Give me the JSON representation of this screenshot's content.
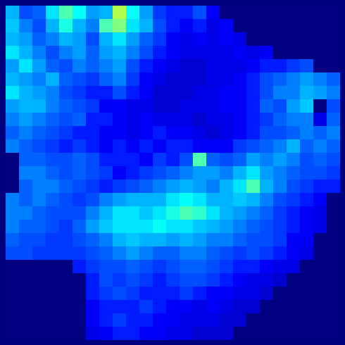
{
  "chart_data": {
    "type": "heatmap",
    "tick_labels": false,
    "zlim": [
      0,
      1
    ],
    "cells": [
      [
        0.3,
        0.2,
        0.22,
        0.35,
        0.45,
        0.38,
        0.28,
        0.3,
        0.55,
        0.38,
        0.28,
        0.18,
        0.15,
        0.15,
        0.2,
        0.12,
        0,
        0,
        0,
        0,
        0,
        0,
        0,
        0,
        0
      ],
      [
        0.32,
        0.25,
        0.2,
        0.3,
        0.4,
        0.3,
        0.25,
        0.45,
        0.5,
        0.35,
        0.3,
        0.2,
        0.15,
        0.12,
        0.15,
        0.1,
        0.12,
        0,
        0,
        0,
        0,
        0,
        0,
        0,
        0
      ],
      [
        0.3,
        0.28,
        0.22,
        0.25,
        0.3,
        0.28,
        0.2,
        0.3,
        0.35,
        0.28,
        0.22,
        0.18,
        0.12,
        0.1,
        0.12,
        0.1,
        0.12,
        0.1,
        0,
        0,
        0,
        0,
        0,
        0,
        0
      ],
      [
        0.35,
        0.3,
        0.25,
        0.2,
        0.25,
        0.28,
        0.22,
        0.28,
        0.3,
        0.25,
        0.2,
        0.15,
        0.12,
        0.1,
        0.1,
        0.1,
        0.1,
        0.12,
        0.1,
        0.12,
        0,
        0,
        0,
        0,
        0
      ],
      [
        0.28,
        0.35,
        0.28,
        0.22,
        0.2,
        0.25,
        0.22,
        0.25,
        0.28,
        0.2,
        0.15,
        0.12,
        0.1,
        0.08,
        0.08,
        0.1,
        0.1,
        0.1,
        0.12,
        0.15,
        0.15,
        0.18,
        0.2,
        0,
        0
      ],
      [
        0.3,
        0.28,
        0.25,
        0.3,
        0.22,
        0.2,
        0.18,
        0.22,
        0.25,
        0.18,
        0.12,
        0.1,
        0.08,
        0.08,
        0.08,
        0.1,
        0.1,
        0.12,
        0.15,
        0.2,
        0.22,
        0.25,
        0.28,
        0.25,
        0.22
      ],
      [
        0.35,
        0.3,
        0.28,
        0.25,
        0.2,
        0.18,
        0.15,
        0.15,
        0.2,
        0.15,
        0.12,
        0.08,
        0.08,
        0.08,
        0.1,
        0.1,
        0.12,
        0.12,
        0.15,
        0.2,
        0.25,
        0.25,
        0.3,
        0.28,
        0.25
      ],
      [
        0.28,
        0.3,
        0.3,
        0.25,
        0.22,
        0.2,
        0.18,
        0.12,
        0.12,
        0.1,
        0.1,
        0.08,
        0.08,
        0.1,
        0.1,
        0.1,
        0.12,
        0.12,
        0.15,
        0.22,
        0.2,
        0.28,
        0.32,
        0,
        0.2
      ],
      [
        0.25,
        0.28,
        0.25,
        0.22,
        0.2,
        0.22,
        0.15,
        0.15,
        0.12,
        0.1,
        0.12,
        0.1,
        0.1,
        0.1,
        0.08,
        0.1,
        0.1,
        0.12,
        0.15,
        0.18,
        0.22,
        0.25,
        0.25,
        0.1,
        0.22
      ],
      [
        0.22,
        0.25,
        0.22,
        0.2,
        0.18,
        0.15,
        0.15,
        0.12,
        0.12,
        0.1,
        0.12,
        0.15,
        0.12,
        0.12,
        0.1,
        0.08,
        0.1,
        0.12,
        0.15,
        0.2,
        0.2,
        0.22,
        0.25,
        0.22,
        0.25
      ],
      [
        0.25,
        0.22,
        0.2,
        0.18,
        0.15,
        0.18,
        0.15,
        0.12,
        0.15,
        0.12,
        0.15,
        0.12,
        0.15,
        0.15,
        0.12,
        0.12,
        0.12,
        0.18,
        0.2,
        0.22,
        0.25,
        0.3,
        0.22,
        0.25,
        0.22
      ],
      [
        0,
        0.22,
        0.22,
        0.2,
        0.2,
        0.22,
        0.2,
        0.15,
        0.15,
        0.15,
        0.12,
        0.18,
        0.15,
        0.2,
        0.45,
        0.22,
        0.2,
        0.22,
        0.28,
        0.25,
        0.28,
        0.25,
        0.2,
        0.22,
        0.2
      ],
      [
        0,
        0.25,
        0.25,
        0.22,
        0.2,
        0.22,
        0.2,
        0.18,
        0.12,
        0.15,
        0.18,
        0.2,
        0.22,
        0.25,
        0.28,
        0.28,
        0.25,
        0.3,
        0.35,
        0.28,
        0.25,
        0.22,
        0.2,
        0.2,
        0.18
      ],
      [
        0,
        0.22,
        0.25,
        0.25,
        0.22,
        0.2,
        0.18,
        0.15,
        0.18,
        0.2,
        0.22,
        0.25,
        0.28,
        0.3,
        0.28,
        0.25,
        0.3,
        0.35,
        0.45,
        0.3,
        0.25,
        0.2,
        0.18,
        0.15,
        0.15
      ],
      [
        0.25,
        0.22,
        0.25,
        0.22,
        0.2,
        0.18,
        0.2,
        0.25,
        0.28,
        0.3,
        0.3,
        0.3,
        0.35,
        0.38,
        0.35,
        0.3,
        0.3,
        0.32,
        0.3,
        0.25,
        0.2,
        0.18,
        0.15,
        0.12,
        0
      ],
      [
        0.25,
        0.25,
        0.22,
        0.2,
        0.2,
        0.2,
        0.25,
        0.3,
        0.35,
        0.35,
        0.32,
        0.35,
        0.4,
        0.45,
        0.42,
        0.35,
        0.3,
        0.28,
        0.25,
        0.22,
        0.18,
        0.15,
        0.12,
        0.1,
        0
      ],
      [
        0.25,
        0.22,
        0.22,
        0.2,
        0.18,
        0.22,
        0.28,
        0.32,
        0.35,
        0.35,
        0.35,
        0.38,
        0.35,
        0.35,
        0.32,
        0.3,
        0.28,
        0.25,
        0.22,
        0.2,
        0.18,
        0.15,
        0.12,
        0.1,
        0
      ],
      [
        0.22,
        0.2,
        0.2,
        0.18,
        0.18,
        0.2,
        0.22,
        0.25,
        0.3,
        0.32,
        0.3,
        0.3,
        0.28,
        0.3,
        0.28,
        0.25,
        0.25,
        0.22,
        0.2,
        0.2,
        0.18,
        0.12,
        0.12,
        0,
        0
      ],
      [
        0.2,
        0.2,
        0.18,
        0.18,
        0.18,
        0.18,
        0.2,
        0.22,
        0.25,
        0.28,
        0.25,
        0.22,
        0.22,
        0.25,
        0.25,
        0.22,
        0.2,
        0.18,
        0.2,
        0.18,
        0.15,
        0.12,
        0.1,
        0,
        0
      ],
      [
        0,
        0,
        0,
        0,
        0,
        0.15,
        0.18,
        0.2,
        0.2,
        0.22,
        0.2,
        0.18,
        0.2,
        0.22,
        0.22,
        0.2,
        0.18,
        0.15,
        0.15,
        0.12,
        0.1,
        0.1,
        0,
        0,
        0
      ],
      [
        0,
        0,
        0,
        0,
        0,
        0,
        0.15,
        0.2,
        0.18,
        0.2,
        0.18,
        0.15,
        0.18,
        0.2,
        0.2,
        0.18,
        0.15,
        0.12,
        0.1,
        0.1,
        0.08,
        0,
        0,
        0,
        0
      ],
      [
        0,
        0,
        0,
        0,
        0,
        0,
        0.15,
        0.18,
        0.2,
        0.18,
        0.15,
        0.15,
        0.15,
        0.18,
        0.15,
        0.12,
        0.12,
        0.1,
        0.1,
        0.08,
        0,
        0,
        0,
        0,
        0
      ],
      [
        0,
        0,
        0,
        0,
        0,
        0,
        0.12,
        0.15,
        0.15,
        0.15,
        0.18,
        0.15,
        0.12,
        0.12,
        0.1,
        0.12,
        0.1,
        0.08,
        0.08,
        0,
        0,
        0,
        0,
        0,
        0
      ],
      [
        0,
        0,
        0,
        0,
        0,
        0,
        0.12,
        0.15,
        0.18,
        0.15,
        0.15,
        0.12,
        0.12,
        0.1,
        0.1,
        0.1,
        0.08,
        0.08,
        0,
        0,
        0,
        0,
        0,
        0,
        0
      ],
      [
        0,
        0,
        0,
        0,
        0,
        0,
        0.1,
        0.12,
        0.15,
        0.15,
        0.12,
        0.12,
        0.1,
        0.1,
        0.08,
        0.08,
        0.08,
        0,
        0,
        0,
        0,
        0,
        0,
        0,
        0
      ]
    ]
  }
}
